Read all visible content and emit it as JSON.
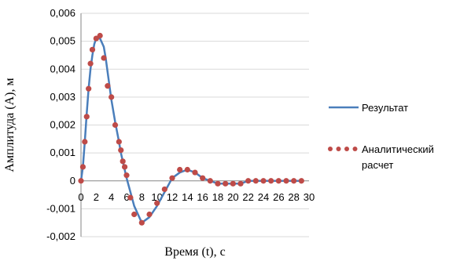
{
  "chart_data": {
    "type": "line",
    "xlabel": "Время (t), с",
    "ylabel": "Амплитуда (A), м",
    "ylim": [
      -0.002,
      0.006
    ],
    "xlim": [
      0,
      30
    ],
    "x_ticks": [
      0,
      2,
      4,
      6,
      8,
      10,
      12,
      14,
      16,
      18,
      20,
      22,
      24,
      26,
      28,
      30
    ],
    "y_ticks": [
      -0.002,
      -0.001,
      0,
      0.001,
      0.002,
      0.003,
      0.004,
      0.005,
      0.006
    ],
    "y_tick_labels": [
      "-0,002",
      "-0,001",
      "0",
      "0,001",
      "0,002",
      "0,003",
      "0,004",
      "0,005",
      "0,006"
    ],
    "grid": "horizontal",
    "legend_position": "right",
    "colors": {
      "line": "#4a7ebb",
      "marker": "#be4b48",
      "grid": "#d9d9d9",
      "axis": "#868686"
    },
    "series": [
      {
        "name": "Результат",
        "style": "solid-line",
        "x": [
          0,
          0.25,
          0.5,
          0.75,
          1,
          1.25,
          1.5,
          1.75,
          2,
          2.5,
          3,
          3.25,
          3.5,
          3.75,
          4,
          4.5,
          5,
          5.25,
          5.5,
          5.75,
          6,
          6.5,
          7,
          7.5,
          8,
          9,
          10,
          11,
          12,
          13,
          14,
          15,
          16,
          17,
          18,
          19,
          20,
          21,
          22,
          23,
          24,
          25,
          26,
          27,
          28,
          29
        ],
        "y": [
          0,
          0.0005,
          0.0014,
          0.0024,
          0.0033,
          0.004,
          0.0045,
          0.0049,
          0.0051,
          0.0051,
          0.0048,
          0.0044,
          0.0039,
          0.0034,
          0.0029,
          0.0021,
          0.0014,
          0.001,
          0.0007,
          0.0004,
          0.0001,
          -0.0004,
          -0.0009,
          -0.0012,
          -0.0015,
          -0.0013,
          -0.0009,
          -0.0004,
          0.0001,
          0.0003,
          0.0004,
          0.0003,
          0.0001,
          0.0,
          -0.0001,
          -0.0001,
          -0.0001,
          -0.0001,
          0.0,
          0.0,
          0.0,
          0.0,
          0.0,
          0.0,
          0.0,
          0.0
        ]
      },
      {
        "name": "Аналитический расчет",
        "style": "dotted-markers",
        "x": [
          0,
          0.25,
          0.5,
          0.75,
          1,
          1.25,
          1.5,
          2,
          2.5,
          3,
          3.5,
          4,
          4.5,
          5,
          5.25,
          5.5,
          5.75,
          6,
          6.5,
          7,
          8,
          9,
          10,
          11,
          12,
          13,
          14,
          15,
          16,
          17,
          18,
          19,
          20,
          21,
          22,
          23,
          24,
          25,
          26,
          27,
          28,
          29
        ],
        "y": [
          0,
          0.0005,
          0.0014,
          0.0023,
          0.0033,
          0.0042,
          0.0047,
          0.0051,
          0.0052,
          0.0044,
          0.0034,
          0.003,
          0.002,
          0.0014,
          0.0011,
          0.0007,
          0.0005,
          0.0002,
          -0.0006,
          -0.0012,
          -0.0015,
          -0.0012,
          -0.0008,
          -0.0003,
          0.0001,
          0.0004,
          0.0004,
          0.0003,
          0.0001,
          0.0,
          -0.0001,
          -0.0001,
          -0.0001,
          -0.0001,
          0.0,
          0.0,
          0.0,
          0.0,
          0.0,
          0.0,
          0.0,
          0.0
        ]
      }
    ],
    "legend": [
      {
        "lines": [
          "Результат"
        ]
      },
      {
        "lines": [
          "Аналитический",
          "расчет"
        ]
      }
    ]
  }
}
